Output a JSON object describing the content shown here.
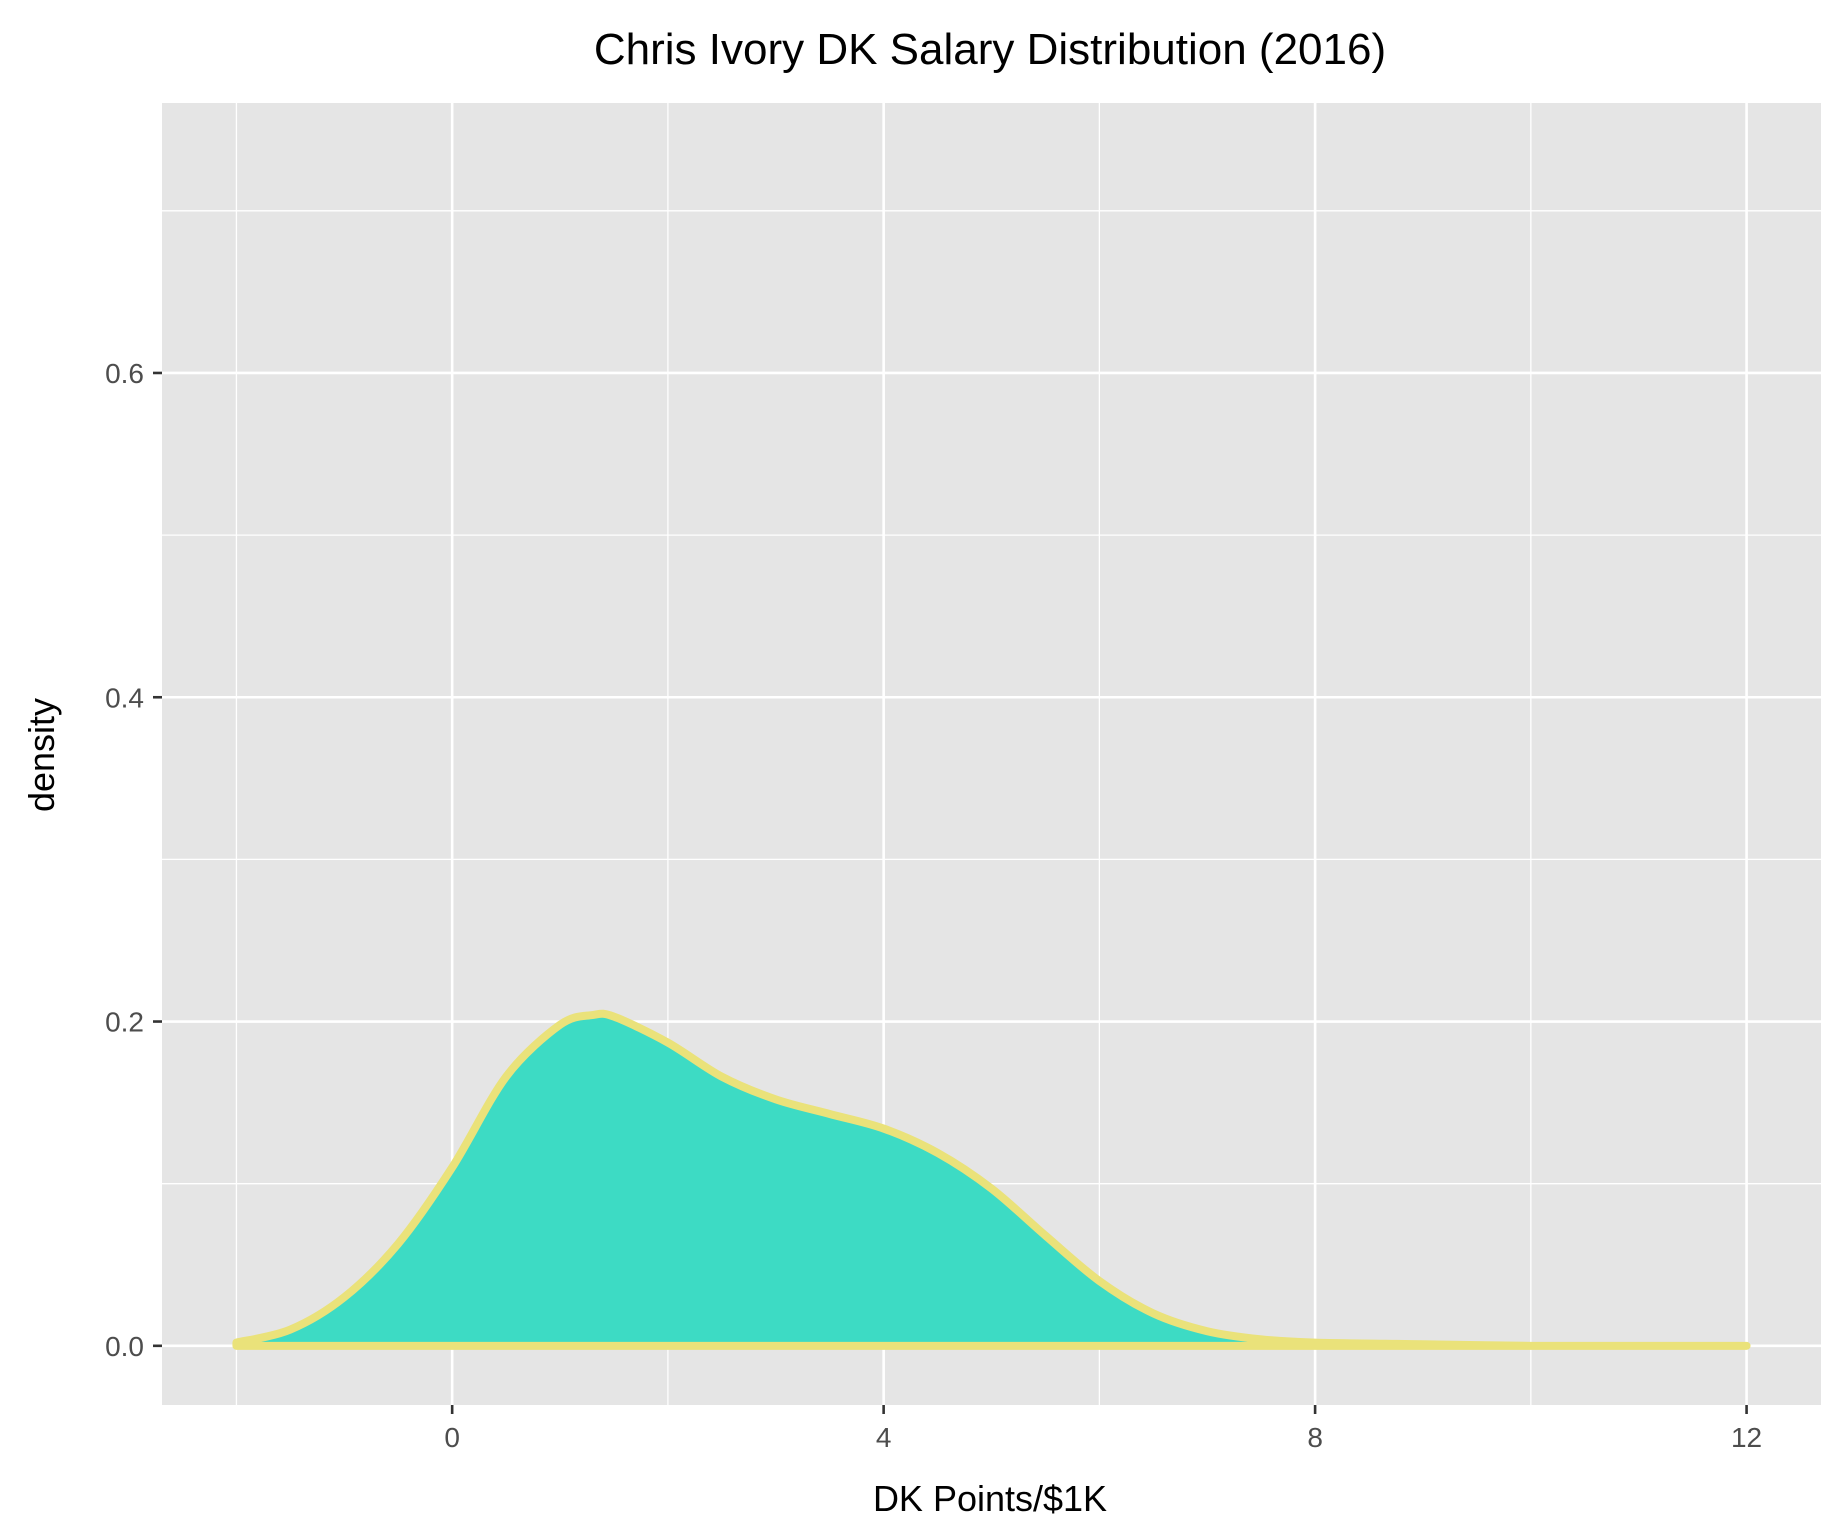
{
  "chart_data": {
    "type": "area",
    "title": "Chris Ivory DK Salary Distribution (2016)",
    "xlabel": "DK Points/$1K",
    "ylabel": "density",
    "xlim": [
      -2.69,
      12.69
    ],
    "ylim": [
      -0.0365,
      0.7665
    ],
    "x_ticks": [
      0,
      4,
      8,
      12
    ],
    "x_tick_labels": [
      "0",
      "4",
      "8",
      "12"
    ],
    "x_minor_ticks": [
      -2,
      2,
      6,
      10
    ],
    "y_ticks": [
      0.0,
      0.2,
      0.4,
      0.6
    ],
    "y_tick_labels": [
      "0.0",
      "0.2",
      "0.4",
      "0.6"
    ],
    "y_minor_ticks": [
      0.1,
      0.3,
      0.5,
      0.7
    ],
    "grid": true,
    "colors": {
      "fill": "#3DDBC4",
      "outline": "#EAE27A",
      "panel_background": "#E5E5E5",
      "grid": "#FFFFFF"
    },
    "series": [
      {
        "x": [
          -2,
          -1.5,
          -1,
          -0.5,
          0,
          0.5,
          1,
          1.3,
          1.5,
          2,
          2.5,
          3,
          3.5,
          4,
          4.5,
          5,
          5.5,
          6,
          6.5,
          7,
          7.5,
          8,
          9,
          10,
          11,
          12
        ],
        "y": [
          0.002,
          0.01,
          0.03,
          0.063,
          0.11,
          0.166,
          0.198,
          0.204,
          0.203,
          0.187,
          0.166,
          0.152,
          0.143,
          0.134,
          0.119,
          0.097,
          0.068,
          0.04,
          0.02,
          0.009,
          0.004,
          0.002,
          0.001,
          0.0,
          0.0,
          0.0
        ]
      }
    ]
  }
}
